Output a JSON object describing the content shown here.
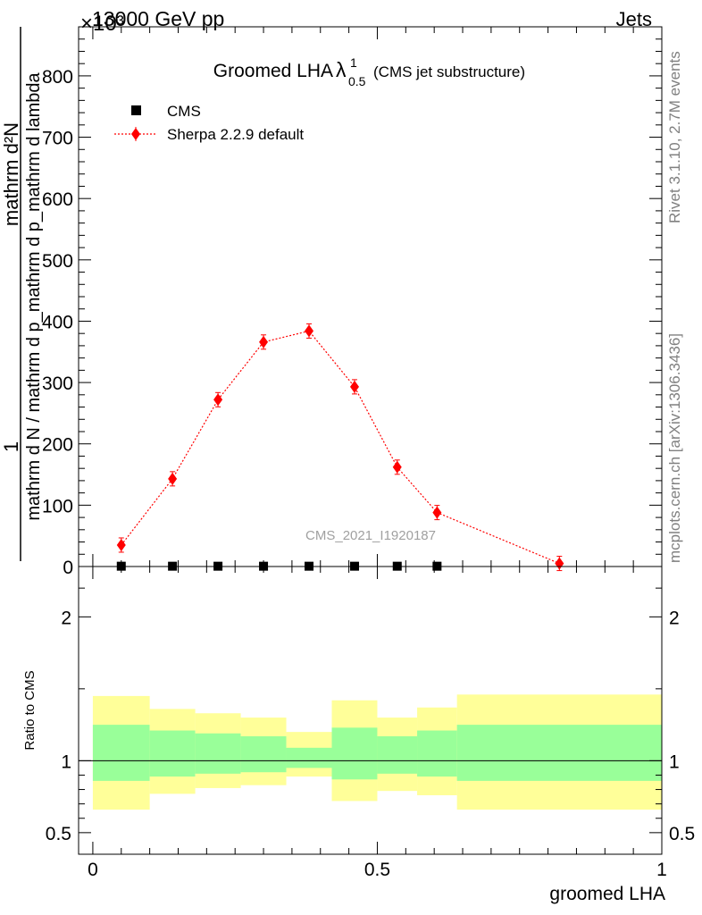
{
  "header": {
    "energy_label": "13000 GeV pp",
    "process_label": "Jets",
    "exponent_label": "×10³"
  },
  "side_labels": {
    "rivet": "Rivet 3.1.10,  2.7M events",
    "mcplots": "mcplots.cern.ch [arXiv:1306.3436]"
  },
  "upper_ylabel": {
    "numerator": "mathrm d²N",
    "denominator": "mathrm d N / mathrm d p_mathrm d p_mathrm d lambda",
    "prefix": "1"
  },
  "chart_data": [
    {
      "type": "scatter",
      "title": {
        "main": "Groomed LHA",
        "lambda": "λ",
        "sup": "1",
        "sub": "0.5",
        "suffix": "(CMS jet substructure)"
      },
      "watermark": "CMS_2021_I1920187",
      "ylim": [
        0,
        880
      ],
      "yticks": [
        0,
        100,
        200,
        300,
        400,
        500,
        600,
        700,
        800
      ],
      "xlim": [
        -0.025,
        1.0
      ],
      "legend_position": "top-left",
      "series": [
        {
          "name": "CMS",
          "color": "#000000",
          "marker": "square",
          "x": [
            0.05,
            0.14,
            0.22,
            0.3,
            0.38,
            0.46,
            0.535,
            0.605
          ],
          "y": [
            0.5,
            0.5,
            0.5,
            0.5,
            0.5,
            0.5,
            0.5,
            0.5
          ]
        },
        {
          "name": "Sherpa 2.2.9 default",
          "color": "#ff0000",
          "marker": "diamond",
          "line": "dotted",
          "x": [
            0.05,
            0.14,
            0.22,
            0.3,
            0.38,
            0.46,
            0.535,
            0.605,
            0.82
          ],
          "y": [
            35,
            143,
            272,
            366,
            384,
            293,
            162,
            88,
            5
          ],
          "yerr": [
            3,
            5,
            7,
            9,
            10,
            7,
            5,
            3,
            1
          ]
        }
      ]
    },
    {
      "type": "area",
      "ylabel": "Ratio to CMS",
      "xlabel": "groomed LHA",
      "ylim": [
        0.35,
        2.35
      ],
      "yticks": [
        0.5,
        1,
        2
      ],
      "ytick_labels": [
        "0.5",
        "1",
        "2"
      ],
      "xlim": [
        -0.025,
        1.0
      ],
      "xticks": [
        0,
        0.5,
        1
      ],
      "xtick_labels": [
        "0",
        "0.5",
        "1"
      ],
      "colors": {
        "band_outer": "#ffff99",
        "band_inner": "#99ff99",
        "reference_line": "#000000"
      },
      "bins": [
        {
          "lo": 0.0,
          "hi": 0.1,
          "outer": [
            0.66,
            1.45
          ],
          "inner": [
            0.86,
            1.25
          ]
        },
        {
          "lo": 0.1,
          "hi": 0.18,
          "outer": [
            0.77,
            1.36
          ],
          "inner": [
            0.89,
            1.21
          ]
        },
        {
          "lo": 0.18,
          "hi": 0.26,
          "outer": [
            0.81,
            1.33
          ],
          "inner": [
            0.91,
            1.19
          ]
        },
        {
          "lo": 0.26,
          "hi": 0.34,
          "outer": [
            0.83,
            1.3
          ],
          "inner": [
            0.92,
            1.17
          ]
        },
        {
          "lo": 0.34,
          "hi": 0.42,
          "outer": [
            0.89,
            1.2
          ],
          "inner": [
            0.95,
            1.09
          ]
        },
        {
          "lo": 0.42,
          "hi": 0.5,
          "outer": [
            0.72,
            1.42
          ],
          "inner": [
            0.87,
            1.23
          ]
        },
        {
          "lo": 0.5,
          "hi": 0.57,
          "outer": [
            0.79,
            1.3
          ],
          "inner": [
            0.91,
            1.17
          ]
        },
        {
          "lo": 0.57,
          "hi": 0.64,
          "outer": [
            0.76,
            1.37
          ],
          "inner": [
            0.89,
            1.21
          ]
        },
        {
          "lo": 0.64,
          "hi": 1.0,
          "outer": [
            0.66,
            1.46
          ],
          "inner": [
            0.86,
            1.25
          ]
        }
      ]
    }
  ]
}
